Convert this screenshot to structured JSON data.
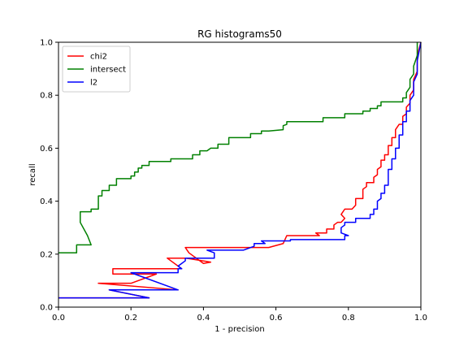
{
  "chart_data": {
    "type": "line",
    "title": "RG histograms50",
    "xlabel": "1 - precision",
    "ylabel": "recall",
    "xlim": [
      0.0,
      1.0
    ],
    "ylim": [
      0.0,
      1.0
    ],
    "xticks": [
      "0.0",
      "0.2",
      "0.4",
      "0.6",
      "0.8",
      "1.0"
    ],
    "yticks": [
      "0.0",
      "0.2",
      "0.4",
      "0.6",
      "0.8",
      "1.0"
    ],
    "grid": false,
    "legend_position": "top-left",
    "series": [
      {
        "name": "chi2",
        "color": "#ff0000",
        "points": [
          [
            0.0,
            0.035
          ],
          [
            0.25,
            0.035
          ],
          [
            0.14,
            0.065
          ],
          [
            0.33,
            0.065
          ],
          [
            0.11,
            0.09
          ],
          [
            0.2,
            0.09
          ],
          [
            0.27,
            0.125
          ],
          [
            0.15,
            0.125
          ],
          [
            0.15,
            0.145
          ],
          [
            0.29,
            0.145
          ],
          [
            0.34,
            0.145
          ],
          [
            0.3,
            0.185
          ],
          [
            0.35,
            0.185
          ],
          [
            0.42,
            0.17
          ],
          [
            0.4,
            0.165
          ],
          [
            0.36,
            0.205
          ],
          [
            0.35,
            0.225
          ],
          [
            0.58,
            0.225
          ],
          [
            0.62,
            0.24
          ],
          [
            0.63,
            0.27
          ],
          [
            0.72,
            0.27
          ],
          [
            0.71,
            0.28
          ],
          [
            0.74,
            0.28
          ],
          [
            0.74,
            0.295
          ],
          [
            0.76,
            0.295
          ],
          [
            0.76,
            0.31
          ],
          [
            0.77,
            0.32
          ],
          [
            0.78,
            0.32
          ],
          [
            0.79,
            0.335
          ],
          [
            0.78,
            0.35
          ],
          [
            0.79,
            0.37
          ],
          [
            0.81,
            0.37
          ],
          [
            0.82,
            0.385
          ],
          [
            0.82,
            0.41
          ],
          [
            0.84,
            0.41
          ],
          [
            0.84,
            0.445
          ],
          [
            0.85,
            0.455
          ],
          [
            0.85,
            0.47
          ],
          [
            0.87,
            0.47
          ],
          [
            0.87,
            0.49
          ],
          [
            0.88,
            0.5
          ],
          [
            0.88,
            0.52
          ],
          [
            0.89,
            0.53
          ],
          [
            0.89,
            0.555
          ],
          [
            0.9,
            0.555
          ],
          [
            0.9,
            0.575
          ],
          [
            0.91,
            0.575
          ],
          [
            0.91,
            0.61
          ],
          [
            0.92,
            0.61
          ],
          [
            0.92,
            0.64
          ],
          [
            0.93,
            0.64
          ],
          [
            0.93,
            0.67
          ],
          [
            0.94,
            0.69
          ],
          [
            0.95,
            0.69
          ],
          [
            0.95,
            0.72
          ],
          [
            0.96,
            0.73
          ],
          [
            0.96,
            0.755
          ],
          [
            0.97,
            0.77
          ],
          [
            0.97,
            0.8
          ],
          [
            0.98,
            0.82
          ],
          [
            0.98,
            0.86
          ],
          [
            0.99,
            0.89
          ],
          [
            0.99,
            0.95
          ],
          [
            1.0,
            1.0
          ]
        ]
      },
      {
        "name": "intersect",
        "color": "#008000",
        "points": [
          [
            0.0,
            0.205
          ],
          [
            0.05,
            0.205
          ],
          [
            0.05,
            0.235
          ],
          [
            0.09,
            0.235
          ],
          [
            0.08,
            0.27
          ],
          [
            0.06,
            0.32
          ],
          [
            0.06,
            0.36
          ],
          [
            0.09,
            0.36
          ],
          [
            0.09,
            0.37
          ],
          [
            0.11,
            0.37
          ],
          [
            0.11,
            0.42
          ],
          [
            0.12,
            0.42
          ],
          [
            0.12,
            0.44
          ],
          [
            0.14,
            0.44
          ],
          [
            0.14,
            0.46
          ],
          [
            0.16,
            0.46
          ],
          [
            0.16,
            0.485
          ],
          [
            0.2,
            0.485
          ],
          [
            0.2,
            0.495
          ],
          [
            0.21,
            0.495
          ],
          [
            0.21,
            0.51
          ],
          [
            0.22,
            0.51
          ],
          [
            0.22,
            0.525
          ],
          [
            0.23,
            0.525
          ],
          [
            0.23,
            0.535
          ],
          [
            0.25,
            0.535
          ],
          [
            0.25,
            0.55
          ],
          [
            0.31,
            0.55
          ],
          [
            0.31,
            0.56
          ],
          [
            0.37,
            0.56
          ],
          [
            0.37,
            0.575
          ],
          [
            0.39,
            0.575
          ],
          [
            0.39,
            0.59
          ],
          [
            0.41,
            0.59
          ],
          [
            0.42,
            0.6
          ],
          [
            0.44,
            0.6
          ],
          [
            0.44,
            0.615
          ],
          [
            0.47,
            0.615
          ],
          [
            0.47,
            0.64
          ],
          [
            0.53,
            0.64
          ],
          [
            0.53,
            0.655
          ],
          [
            0.56,
            0.655
          ],
          [
            0.56,
            0.665
          ],
          [
            0.58,
            0.665
          ],
          [
            0.62,
            0.67
          ],
          [
            0.62,
            0.685
          ],
          [
            0.63,
            0.69
          ],
          [
            0.63,
            0.7
          ],
          [
            0.73,
            0.7
          ],
          [
            0.73,
            0.715
          ],
          [
            0.79,
            0.715
          ],
          [
            0.79,
            0.73
          ],
          [
            0.84,
            0.73
          ],
          [
            0.84,
            0.74
          ],
          [
            0.86,
            0.74
          ],
          [
            0.86,
            0.75
          ],
          [
            0.88,
            0.75
          ],
          [
            0.88,
            0.76
          ],
          [
            0.89,
            0.76
          ],
          [
            0.89,
            0.775
          ],
          [
            0.95,
            0.775
          ],
          [
            0.95,
            0.79
          ],
          [
            0.96,
            0.79
          ],
          [
            0.96,
            0.81
          ],
          [
            0.97,
            0.83
          ],
          [
            0.97,
            0.86
          ],
          [
            0.98,
            0.88
          ],
          [
            0.98,
            0.91
          ],
          [
            0.99,
            0.95
          ],
          [
            0.99,
            1.0
          ]
        ]
      },
      {
        "name": "l2",
        "color": "#0000ff",
        "points": [
          [
            0.0,
            0.035
          ],
          [
            0.25,
            0.035
          ],
          [
            0.14,
            0.065
          ],
          [
            0.33,
            0.065
          ],
          [
            0.2,
            0.13
          ],
          [
            0.33,
            0.13
          ],
          [
            0.33,
            0.145
          ],
          [
            0.34,
            0.145
          ],
          [
            0.33,
            0.155
          ],
          [
            0.34,
            0.165
          ],
          [
            0.35,
            0.175
          ],
          [
            0.35,
            0.185
          ],
          [
            0.43,
            0.185
          ],
          [
            0.43,
            0.205
          ],
          [
            0.41,
            0.215
          ],
          [
            0.51,
            0.215
          ],
          [
            0.54,
            0.23
          ],
          [
            0.54,
            0.24
          ],
          [
            0.57,
            0.24
          ],
          [
            0.56,
            0.25
          ],
          [
            0.64,
            0.25
          ],
          [
            0.64,
            0.255
          ],
          [
            0.79,
            0.255
          ],
          [
            0.79,
            0.27
          ],
          [
            0.8,
            0.27
          ],
          [
            0.78,
            0.28
          ],
          [
            0.78,
            0.3
          ],
          [
            0.79,
            0.31
          ],
          [
            0.79,
            0.32
          ],
          [
            0.82,
            0.32
          ],
          [
            0.82,
            0.335
          ],
          [
            0.86,
            0.335
          ],
          [
            0.86,
            0.35
          ],
          [
            0.87,
            0.35
          ],
          [
            0.87,
            0.37
          ],
          [
            0.88,
            0.37
          ],
          [
            0.88,
            0.4
          ],
          [
            0.89,
            0.41
          ],
          [
            0.89,
            0.43
          ],
          [
            0.9,
            0.43
          ],
          [
            0.9,
            0.46
          ],
          [
            0.91,
            0.46
          ],
          [
            0.91,
            0.52
          ],
          [
            0.92,
            0.52
          ],
          [
            0.92,
            0.56
          ],
          [
            0.93,
            0.56
          ],
          [
            0.93,
            0.6
          ],
          [
            0.94,
            0.6
          ],
          [
            0.94,
            0.65
          ],
          [
            0.95,
            0.65
          ],
          [
            0.95,
            0.7
          ],
          [
            0.96,
            0.7
          ],
          [
            0.96,
            0.74
          ],
          [
            0.97,
            0.74
          ],
          [
            0.97,
            0.78
          ],
          [
            0.98,
            0.8
          ],
          [
            0.98,
            0.85
          ],
          [
            0.99,
            0.88
          ],
          [
            0.99,
            0.93
          ],
          [
            1.0,
            1.0
          ]
        ]
      }
    ]
  }
}
